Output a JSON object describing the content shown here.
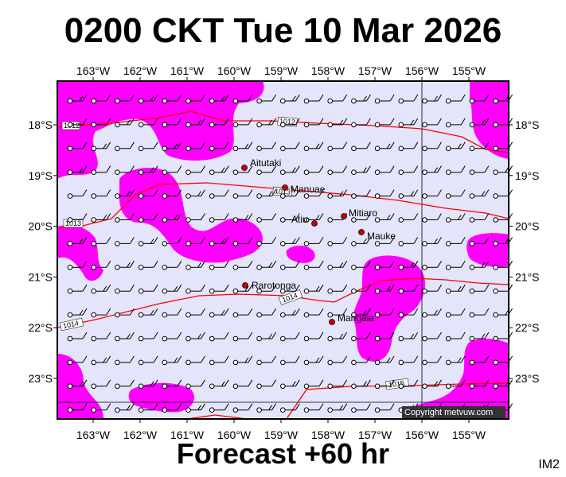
{
  "title": "0200 CKT Tue 10 Mar 2026",
  "footer": "Forecast +60 hr",
  "product_code": "IM2",
  "copyright": "Copyright metvuw.com",
  "colors": {
    "ocean": "#e4e4fa",
    "precip": "#ff00ff",
    "isobar": "#ff0000",
    "town": "#cc0000",
    "frame": "#000000"
  },
  "longitude_labels": [
    "163°W",
    "162°W",
    "161°W",
    "160°W",
    "159°W",
    "158°W",
    "157°W",
    "156°W",
    "155°W"
  ],
  "latitude_labels": [
    "18°S",
    "19°S",
    "20°S",
    "21°S",
    "22°S",
    "23°S"
  ],
  "places": [
    {
      "name": "Aitutaki"
    },
    {
      "name": "Manuae"
    },
    {
      "name": "Mitiaro"
    },
    {
      "name": "Atiu"
    },
    {
      "name": "Mauke"
    },
    {
      "name": "Rarotonga"
    },
    {
      "name": "Mangaia"
    }
  ],
  "isobar_labels": [
    "1012",
    "1012",
    "1013",
    "1013",
    "1014",
    "1014",
    "1015"
  ],
  "wind_barb_icon": "wind-barb-icon"
}
